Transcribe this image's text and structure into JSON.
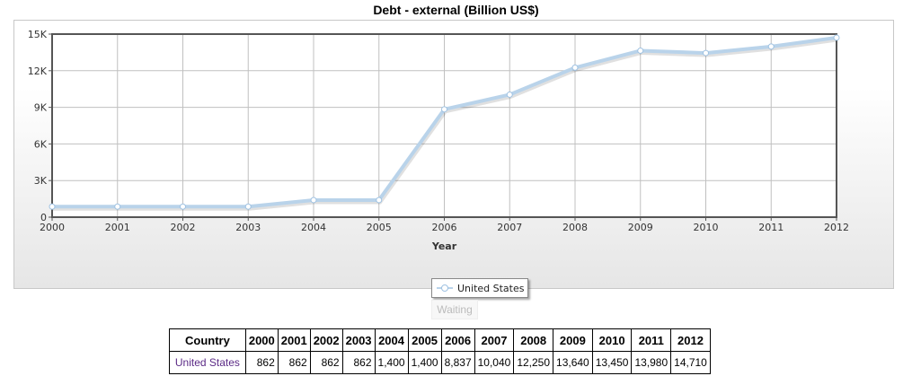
{
  "chart_data": {
    "type": "line",
    "title": "Debt - external (Billion US$)",
    "xlabel": "Year",
    "ylabel": "",
    "x": [
      2000,
      2001,
      2002,
      2003,
      2004,
      2005,
      2006,
      2007,
      2008,
      2009,
      2010,
      2011,
      2012
    ],
    "series": [
      {
        "name": "United States",
        "values": [
          862,
          862,
          862,
          862,
          1400,
          1400,
          8837,
          10040,
          12250,
          13640,
          13450,
          13980,
          14710
        ]
      }
    ],
    "ylim": [
      0,
      15000
    ],
    "yticks": [
      "0",
      "3K",
      "6K",
      "9K",
      "12K",
      "15K"
    ],
    "xticks": [
      "2000",
      "2001",
      "2002",
      "2003",
      "2004",
      "2005",
      "2006",
      "2007",
      "2008",
      "2009",
      "2010",
      "2011",
      "2012"
    ],
    "grid": true,
    "legend_position": "bottom-center",
    "colors": {
      "line": "#b9d3ea",
      "marker_fill": "#ffffff",
      "marker_stroke": "#9fc2e2",
      "grid": "#c0c0c0"
    }
  },
  "legend": {
    "label": "United States"
  },
  "status": {
    "waiting_label": "Waiting"
  },
  "table": {
    "headers": [
      "Country",
      "2000",
      "2001",
      "2002",
      "2003",
      "2004",
      "2005",
      "2006",
      "2007",
      "2008",
      "2009",
      "2010",
      "2011",
      "2012"
    ],
    "rows": [
      [
        "United States",
        "862",
        "862",
        "862",
        "862",
        "1,400",
        "1,400",
        "8,837",
        "10,040",
        "12,250",
        "13,640",
        "13,450",
        "13,980",
        "14,710"
      ]
    ]
  }
}
